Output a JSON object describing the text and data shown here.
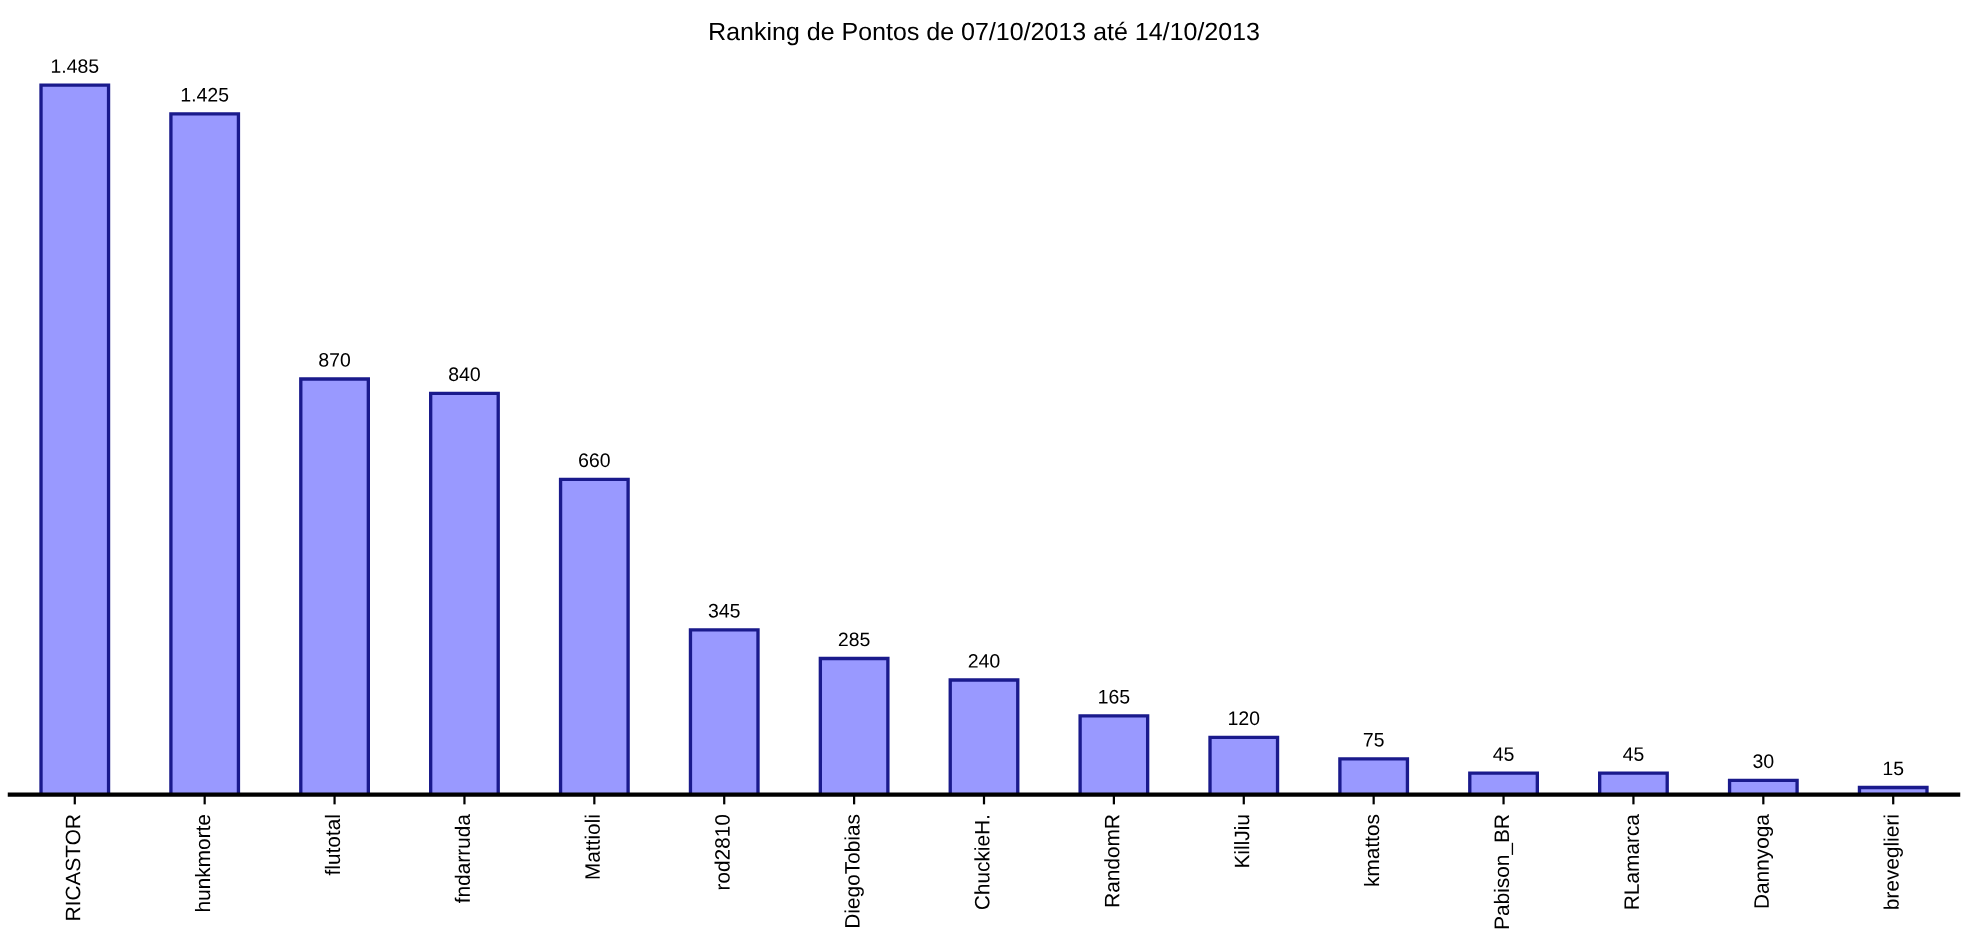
{
  "chart_data": {
    "type": "bar",
    "title": "Ranking de Pontos de 07/10/2013 até 14/10/2013",
    "categories": [
      "RICASTOR",
      "hunkmorte",
      "flutotal",
      "fndarruda",
      "Mattioli",
      "rod2810",
      "DiegoTobias",
      "ChuckieH.",
      "RandomR",
      "KillJiu",
      "kmattos",
      "Pabison_BR",
      "RLamarca",
      "Dannyoga",
      "breveglieri"
    ],
    "values": [
      1485,
      1425,
      870,
      840,
      660,
      345,
      285,
      240,
      165,
      120,
      75,
      45,
      45,
      30,
      15
    ],
    "value_labels": [
      "1.485",
      "1.425",
      "870",
      "840",
      "660",
      "345",
      "285",
      "240",
      "165",
      "120",
      "75",
      "45",
      "45",
      "30",
      "15"
    ],
    "color": "#9999ff",
    "grid": false,
    "legend": false
  }
}
